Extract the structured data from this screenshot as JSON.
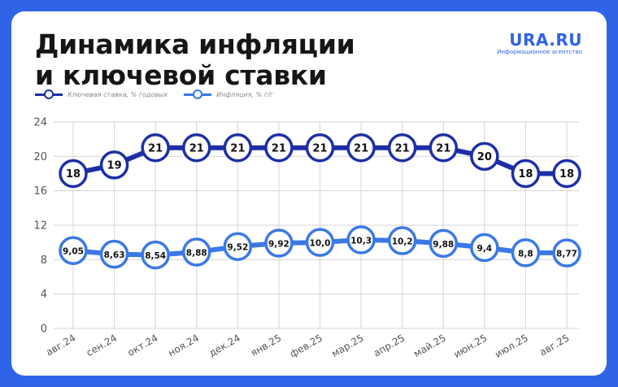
{
  "header": {
    "title_line1": "Динамика инфляции",
    "title_line2": "и ключевой ставки",
    "brand": "URA.RU",
    "brand_sub": "Информационное агентство"
  },
  "colors": {
    "background": "#2f63e8",
    "key_rate": "#1d2fa6",
    "inflation": "#3a78e6",
    "grid": "#d4d4d4",
    "axis_text": "#555555"
  },
  "chart_data": {
    "type": "line",
    "categories": [
      "авг.24",
      "сен.24",
      "окт.24",
      "ноя.24",
      "дек.24",
      "янв.25",
      "фев.25",
      "мар.25",
      "апр.25",
      "май.25",
      "июн.25",
      "июл.25",
      "авг.25"
    ],
    "ylim": [
      0,
      24
    ],
    "yticks": [
      "0",
      "4",
      "8",
      "12",
      "16",
      "20",
      "24"
    ],
    "grid": true,
    "legend": "top-left",
    "series": [
      {
        "name": "Ключевая ставка, % годовых",
        "values": [
          18,
          19,
          21,
          21,
          21,
          21,
          21,
          21,
          21,
          21,
          20,
          18,
          18
        ],
        "labels": [
          "18",
          "19",
          "21",
          "21",
          "21",
          "21",
          "21",
          "21",
          "21",
          "21",
          "20",
          "18",
          "18"
        ]
      },
      {
        "name": "Инфляция, % г/г",
        "values": [
          9.05,
          8.63,
          8.54,
          8.88,
          9.52,
          9.92,
          10.0,
          10.3,
          10.2,
          9.88,
          9.4,
          8.8,
          8.77
        ],
        "labels": [
          "9,05",
          "8,63",
          "8,54",
          "8,88",
          "9,52",
          "9,92",
          "10,0",
          "10,3",
          "10,2",
          "9,88",
          "9,4",
          "8,8",
          "8,77"
        ]
      }
    ]
  }
}
